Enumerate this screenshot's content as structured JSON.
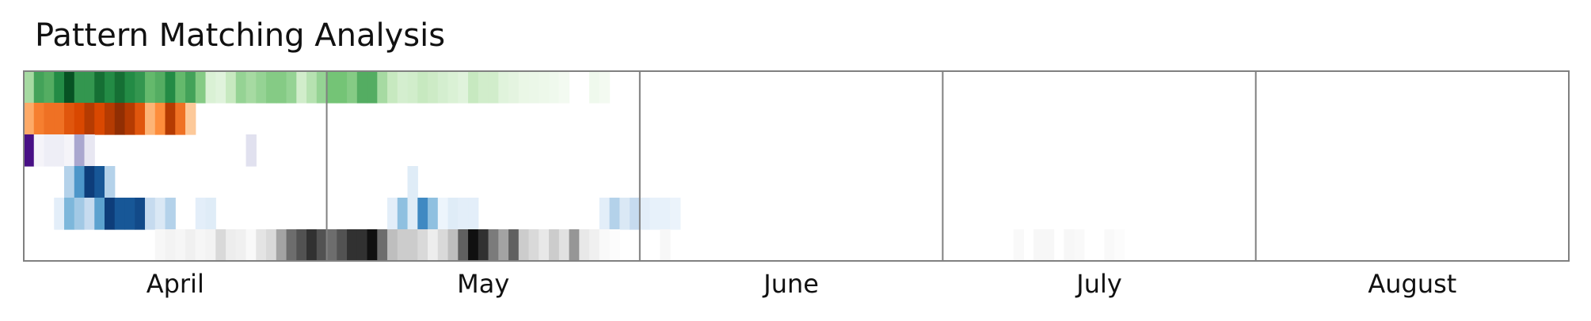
{
  "chart_data": {
    "type": "heatmap",
    "title": "Pattern Matching Analysis",
    "xlabel": "",
    "ylabel": "",
    "grid": false,
    "legend": "none",
    "x_axis": "daily dates",
    "x_start": "2023-04-01",
    "x_end": "2023-08-31",
    "month_labels": [
      "April",
      "May",
      "June",
      "July",
      "August"
    ],
    "rows": [
      {
        "colormap": "Greens",
        "start": "2023-04-01",
        "values": [
          0.35,
          0.65,
          0.6,
          0.75,
          0.95,
          0.7,
          0.7,
          0.85,
          0.75,
          0.85,
          0.75,
          0.7,
          0.55,
          0.6,
          0.75,
          0.55,
          0.65,
          0.45,
          0.15,
          0.12,
          0.25,
          0.4,
          0.35,
          0.4,
          0.45,
          0.45,
          0.4,
          0.2,
          0.3,
          0.4,
          0.5,
          0.5,
          0.45,
          0.6,
          0.6,
          0.35,
          0.25,
          0.18,
          0.2,
          0.25,
          0.22,
          0.18,
          0.15,
          0.12,
          0.25,
          0.2,
          0.2,
          0.12,
          0.1,
          0.07,
          0.06,
          0.05,
          0.04,
          0.02,
          0.0,
          0.0,
          0.04,
          0.02
        ]
      },
      {
        "colormap": "Oranges",
        "start": "2023-04-01",
        "values": [
          0.35,
          0.55,
          0.6,
          0.6,
          0.7,
          0.75,
          0.85,
          0.75,
          0.85,
          0.95,
          0.85,
          0.7,
          0.3,
          0.5,
          0.85,
          0.6,
          0.2
        ]
      },
      {
        "colormap": "Purples",
        "start": "2023-04-01",
        "values": [
          0.95,
          0.05,
          0.1,
          0.1,
          0.05,
          0.45,
          0.15,
          0,
          0,
          0,
          0,
          0,
          0,
          0,
          0,
          0,
          0,
          0,
          0,
          0,
          0,
          0,
          0.2
        ]
      },
      {
        "colormap": "Blues",
        "start": "2023-04-01",
        "values": [
          0,
          0,
          0,
          0,
          0.3,
          0.6,
          0.95,
          0.85,
          0.3,
          0,
          0,
          0,
          0,
          0,
          0,
          0,
          0,
          0,
          0,
          0,
          0,
          0,
          0,
          0,
          0,
          0,
          0,
          0,
          0,
          0,
          0,
          0,
          0,
          0,
          0,
          0,
          0,
          0,
          0.12
        ]
      },
      {
        "colormap": "Blues",
        "start": "2023-04-01",
        "values": [
          0,
          0,
          0,
          0.1,
          0.45,
          0.35,
          0.25,
          0.55,
          0.95,
          0.85,
          0.85,
          0.9,
          0.25,
          0.15,
          0.3,
          0,
          0,
          0.1,
          0.12,
          0,
          0,
          0,
          0,
          0,
          0,
          0,
          0,
          0,
          0,
          0,
          0,
          0,
          0,
          0,
          0,
          0,
          0.1,
          0.4,
          0.12,
          0.65,
          0.4,
          0.05,
          0.12,
          0.1,
          0.1,
          0,
          0,
          0,
          0,
          0,
          0,
          0,
          0,
          0,
          0,
          0,
          0,
          0.1,
          0.3,
          0.15,
          0.25,
          0.1,
          0.08,
          0.08,
          0.06
        ]
      },
      {
        "colormap": "Greys",
        "start": "2023-04-01",
        "values": [
          0,
          0,
          0,
          0,
          0,
          0,
          0,
          0,
          0,
          0,
          0,
          0,
          0,
          0.05,
          0.08,
          0.06,
          0.1,
          0.06,
          0.08,
          0.25,
          0.12,
          0.1,
          0.04,
          0.18,
          0.25,
          0.45,
          0.65,
          0.75,
          0.85,
          0.75,
          0.65,
          0.75,
          0.85,
          0.85,
          0.95,
          0.65,
          0.35,
          0.3,
          0.3,
          0.25,
          0.12,
          0.25,
          0.35,
          0.7,
          0.95,
          0.85,
          0.6,
          0.45,
          0.7,
          0.3,
          0.25,
          0.15,
          0.3,
          0.2,
          0.5,
          0.15,
          0.1,
          0.04,
          0.02,
          0.0,
          0.0,
          0.0,
          0.0,
          0.05,
          0.0,
          0.0,
          0.0,
          0.0,
          0.0,
          0.0,
          0.0,
          0.0,
          0.0,
          0.0,
          0.0,
          0.0,
          0.0,
          0.0,
          0.0,
          0.0,
          0.0,
          0.0,
          0.0,
          0.0,
          0.0,
          0.0,
          0.0,
          0.0,
          0.0,
          0.0,
          0.0,
          0.0,
          0.0,
          0.0,
          0.0,
          0.0,
          0.0,
          0.0,
          0.04,
          0.0,
          0.05,
          0.05,
          0.0,
          0.05,
          0.04,
          0.0,
          0.0,
          0.04,
          0.02
        ]
      }
    ]
  }
}
